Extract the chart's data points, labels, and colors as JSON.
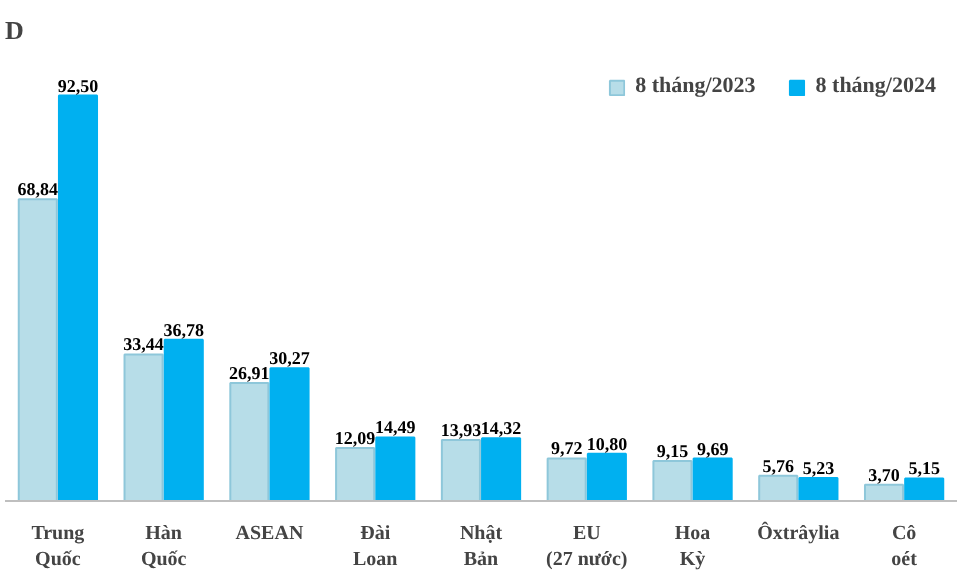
{
  "chart_data": {
    "type": "bar",
    "title": "D",
    "categories": [
      "Trung Quốc",
      "Hàn Quốc",
      "ASEAN",
      "Đài Loan",
      "Nhật Bản",
      "EU (27 nước)",
      "Hoa Kỳ",
      "Ôxtrâylia",
      "Cô oét"
    ],
    "series": [
      {
        "name": "8 tháng/2023",
        "color": "#b7dde8",
        "values": [
          68.84,
          33.44,
          26.91,
          12.09,
          13.93,
          9.72,
          9.15,
          5.76,
          3.7
        ],
        "value_labels": [
          "68,84",
          "33,44",
          "26,91",
          "12,09",
          "13,93",
          "9,72",
          "9,15",
          "5,76",
          "3,70"
        ]
      },
      {
        "name": "8 tháng/2024",
        "color": "#00b0f0",
        "values": [
          92.5,
          36.78,
          30.27,
          14.49,
          14.32,
          10.8,
          9.69,
          5.23,
          5.15
        ],
        "value_labels": [
          "92,50",
          "36,78",
          "30,27",
          "14,49",
          "14,32",
          "10,80",
          "9,69",
          "5,23",
          "5,15"
        ]
      }
    ],
    "legend": "top right",
    "grid": false
  }
}
